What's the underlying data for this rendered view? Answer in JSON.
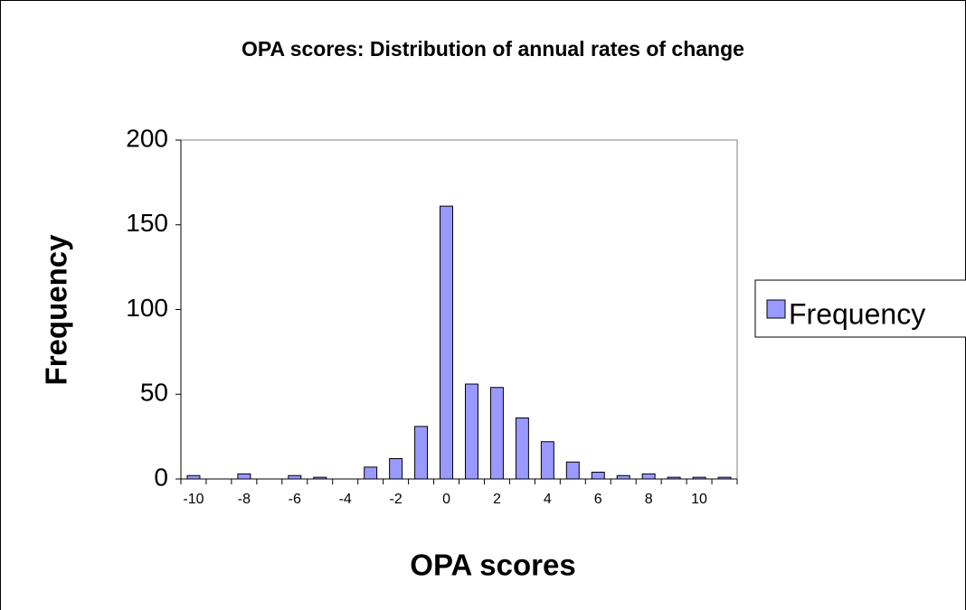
{
  "chart_data": {
    "type": "bar",
    "title": "OPA scores: Distribution of annual rates of change",
    "x_label": "OPA scores",
    "y_label": "Frequency",
    "categories": [
      -10,
      null,
      -8,
      null,
      -6,
      null,
      -4,
      null,
      -2,
      null,
      0,
      null,
      2,
      null,
      4,
      null,
      6,
      null,
      8,
      null,
      10,
      null
    ],
    "series": [
      {
        "name": "Frequency",
        "color": "#9999ff",
        "values": [
          2,
          0,
          3,
          0,
          2,
          1,
          0,
          7,
          12,
          31,
          161,
          56,
          54,
          36,
          22,
          10,
          4,
          2,
          3,
          1,
          1,
          1
        ]
      }
    ],
    "ylim": [
      0,
      200
    ],
    "yticks": [
      0,
      50,
      100,
      150,
      200
    ],
    "grid": false,
    "legend": "right"
  }
}
